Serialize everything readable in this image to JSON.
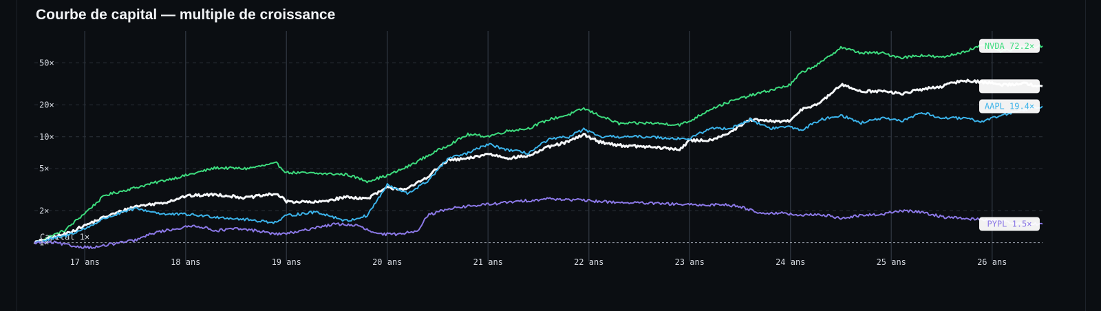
{
  "title": "Courbe de capital — multiple de croissance",
  "chart_data": {
    "type": "line",
    "title": "Courbe de capital — multiple de croissance",
    "xlabel": "",
    "ylabel": "",
    "y_scale": "log",
    "xlim": [
      16.5,
      26.5
    ],
    "ylim": [
      0.95,
      100
    ],
    "grid": {
      "vertical": true,
      "horizontal_dashed": true
    },
    "x_ticks": [
      {
        "value": 17,
        "label": "17 ans"
      },
      {
        "value": 18,
        "label": "18 ans"
      },
      {
        "value": 19,
        "label": "19 ans"
      },
      {
        "value": 20,
        "label": "20 ans"
      },
      {
        "value": 21,
        "label": "21 ans"
      },
      {
        "value": 22,
        "label": "22 ans"
      },
      {
        "value": 23,
        "label": "23 ans"
      },
      {
        "value": 24,
        "label": "24 ans"
      },
      {
        "value": 25,
        "label": "25 ans"
      },
      {
        "value": 26,
        "label": "26 ans"
      }
    ],
    "y_ticks": [
      {
        "value": 50,
        "label": "50×"
      },
      {
        "value": 20,
        "label": "20×"
      },
      {
        "value": 10,
        "label": "10×"
      },
      {
        "value": 5,
        "label": "5×"
      },
      {
        "value": 2,
        "label": "2×"
      },
      {
        "value": 1,
        "label": "1×"
      }
    ],
    "baseline": {
      "value": 1,
      "label": "Capital 1×"
    },
    "series": [
      {
        "name": "NVDA",
        "end_label": "NVDA 72.2×",
        "color": "#3ddc7e",
        "x": [
          16.5,
          16.8,
          17.0,
          17.2,
          17.5,
          17.8,
          18.0,
          18.3,
          18.6,
          18.9,
          19.0,
          19.3,
          19.6,
          19.8,
          20.0,
          20.2,
          20.4,
          20.6,
          20.8,
          21.0,
          21.2,
          21.4,
          21.6,
          21.8,
          21.95,
          22.1,
          22.3,
          22.6,
          22.9,
          23.0,
          23.2,
          23.4,
          23.6,
          23.8,
          24.0,
          24.1,
          24.3,
          24.5,
          24.7,
          24.9,
          25.1,
          25.3,
          25.5,
          25.7,
          25.9,
          26.1,
          26.3,
          26.5
        ],
        "values": [
          1.0,
          1.3,
          1.9,
          2.8,
          3.3,
          3.9,
          4.3,
          5.1,
          5.0,
          5.6,
          4.6,
          4.5,
          4.4,
          3.8,
          4.3,
          5.2,
          6.6,
          8.3,
          10.5,
          10.1,
          11.4,
          12.0,
          14.5,
          16.2,
          18.5,
          16.0,
          13.3,
          13.5,
          13.0,
          14.0,
          18.2,
          21.5,
          24.5,
          27.5,
          31.0,
          40.0,
          50.0,
          70.0,
          62.0,
          62.0,
          56.0,
          59.0,
          56.0,
          63.0,
          72.5,
          64.0,
          70.0,
          72.2
        ]
      },
      {
        "name": "",
        "end_label": "",
        "color": "#f4f6f8",
        "x": [
          16.5,
          16.8,
          17.0,
          17.2,
          17.5,
          17.8,
          18.0,
          18.3,
          18.6,
          18.9,
          19.0,
          19.3,
          19.6,
          19.8,
          20.0,
          20.2,
          20.4,
          20.6,
          20.8,
          21.0,
          21.2,
          21.4,
          21.6,
          21.8,
          21.95,
          22.1,
          22.3,
          22.6,
          22.9,
          23.0,
          23.2,
          23.4,
          23.6,
          23.8,
          24.0,
          24.1,
          24.3,
          24.5,
          24.7,
          24.9,
          25.1,
          25.3,
          25.5,
          25.7,
          25.9,
          26.1,
          26.3,
          26.5
        ],
        "values": [
          1.0,
          1.2,
          1.45,
          1.75,
          2.2,
          2.4,
          2.75,
          2.85,
          2.65,
          2.9,
          2.45,
          2.4,
          2.7,
          2.6,
          3.3,
          3.2,
          4.2,
          6.0,
          6.2,
          6.9,
          6.3,
          6.6,
          8.0,
          9.0,
          10.5,
          9.0,
          8.3,
          8.0,
          7.6,
          9.2,
          9.3,
          11.0,
          14.5,
          14.0,
          14.0,
          18.0,
          21.0,
          31.0,
          27.0,
          27.0,
          25.5,
          28.0,
          30.0,
          34.0,
          33.0,
          31.0,
          32.0,
          30.0
        ]
      },
      {
        "name": "AAPL",
        "end_label": "AAPL 19.4×",
        "color": "#3bb3ea",
        "x": [
          16.5,
          16.8,
          17.0,
          17.2,
          17.5,
          17.8,
          18.0,
          18.3,
          18.6,
          18.9,
          19.0,
          19.3,
          19.6,
          19.8,
          20.0,
          20.2,
          20.4,
          20.6,
          20.8,
          21.0,
          21.2,
          21.4,
          21.6,
          21.8,
          21.95,
          22.1,
          22.3,
          22.6,
          22.9,
          23.0,
          23.2,
          23.4,
          23.6,
          23.8,
          24.0,
          24.1,
          24.3,
          24.5,
          24.7,
          24.9,
          25.1,
          25.3,
          25.5,
          25.7,
          25.9,
          26.1,
          26.3,
          26.5
        ],
        "values": [
          1.0,
          1.15,
          1.35,
          1.7,
          2.1,
          1.85,
          1.85,
          1.75,
          1.65,
          1.55,
          1.8,
          1.95,
          1.6,
          1.8,
          3.5,
          2.9,
          3.8,
          6.2,
          7.0,
          8.5,
          7.5,
          7.0,
          9.4,
          10.0,
          11.8,
          10.0,
          10.0,
          10.0,
          9.6,
          9.6,
          12.0,
          12.0,
          14.5,
          12.0,
          12.5,
          11.5,
          14.5,
          16.0,
          13.5,
          15.0,
          14.0,
          17.0,
          15.0,
          15.0,
          14.0,
          16.0,
          18.0,
          19.4
        ]
      },
      {
        "name": "PYPL",
        "end_label": "PYPL 1.5×",
        "color": "#8b78e6",
        "x": [
          16.5,
          16.7,
          16.9,
          17.1,
          17.3,
          17.5,
          17.7,
          17.9,
          18.1,
          18.3,
          18.5,
          18.7,
          18.9,
          19.1,
          19.3,
          19.5,
          19.7,
          19.9,
          20.1,
          20.3,
          20.4,
          20.6,
          20.8,
          21.0,
          21.2,
          21.4,
          21.6,
          21.8,
          21.95,
          22.1,
          22.3,
          22.6,
          22.9,
          23.1,
          23.3,
          23.5,
          23.7,
          23.9,
          24.1,
          24.3,
          24.5,
          24.7,
          24.9,
          25.1,
          25.3,
          25.5,
          25.7,
          25.9,
          26.1,
          26.3,
          26.5
        ],
        "values": [
          1.0,
          1.0,
          0.92,
          0.9,
          0.98,
          1.05,
          1.25,
          1.35,
          1.45,
          1.3,
          1.35,
          1.3,
          1.2,
          1.25,
          1.4,
          1.5,
          1.45,
          1.2,
          1.2,
          1.3,
          1.8,
          2.1,
          2.2,
          2.3,
          2.4,
          2.5,
          2.6,
          2.55,
          2.5,
          2.45,
          2.4,
          2.35,
          2.3,
          2.25,
          2.3,
          2.2,
          1.9,
          1.9,
          1.8,
          1.85,
          1.7,
          1.8,
          1.85,
          2.0,
          1.95,
          1.75,
          1.7,
          1.65,
          1.6,
          1.5,
          1.5
        ]
      }
    ]
  }
}
